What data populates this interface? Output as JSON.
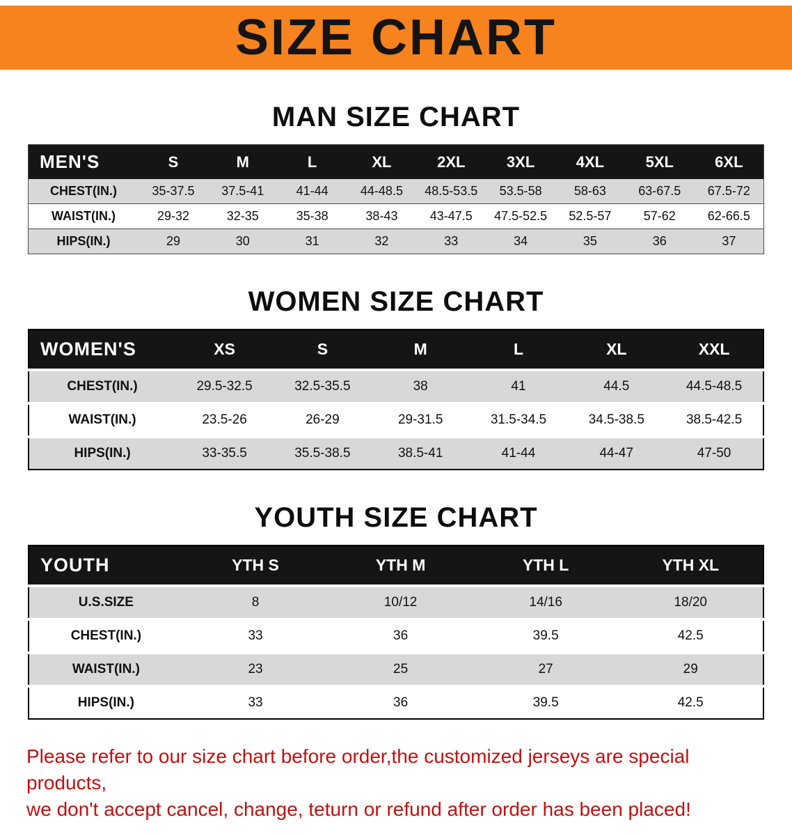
{
  "banner": {
    "title": "SIZE CHART"
  },
  "chart_data": [
    {
      "type": "table",
      "id": "mens",
      "heading": "MAN SIZE CHART",
      "header": [
        "MEN'S",
        "S",
        "M",
        "L",
        "XL",
        "2XL",
        "3XL",
        "4XL",
        "5XL",
        "6XL"
      ],
      "rows": [
        [
          "CHEST(IN.)",
          "35-37.5",
          "37.5-41",
          "41-44",
          "44-48.5",
          "48.5-53.5",
          "53.5-58",
          "58-63",
          "63-67.5",
          "67.5-72"
        ],
        [
          "WAIST(IN.)",
          "29-32",
          "32-35",
          "35-38",
          "38-43",
          "43-47.5",
          "47.5-52.5",
          "52.5-57",
          "57-62",
          "62-66.5"
        ],
        [
          "HIPS(IN.)",
          "29",
          "30",
          "31",
          "32",
          "33",
          "34",
          "35",
          "36",
          "37"
        ]
      ]
    },
    {
      "type": "table",
      "id": "womens",
      "heading": "WOMEN SIZE CHART",
      "header": [
        "WOMEN'S",
        "XS",
        "S",
        "M",
        "L",
        "XL",
        "XXL"
      ],
      "rows": [
        [
          "CHEST(IN.)",
          "29.5-32.5",
          "32.5-35.5",
          "38",
          "41",
          "44.5",
          "44.5-48.5"
        ],
        [
          "WAIST(IN.)",
          "23.5-26",
          "26-29",
          "29-31.5",
          "31.5-34.5",
          "34.5-38.5",
          "38.5-42.5"
        ],
        [
          "HIPS(IN.)",
          "33-35.5",
          "35.5-38.5",
          "38.5-41",
          "41-44",
          "44-47",
          "47-50"
        ]
      ]
    },
    {
      "type": "table",
      "id": "youth",
      "heading": "YOUTH SIZE CHART",
      "header": [
        "YOUTH",
        "YTH S",
        "YTH M",
        "YTH L",
        "YTH XL"
      ],
      "rows": [
        [
          "U.S.SIZE",
          "8",
          "10/12",
          "14/16",
          "18/20"
        ],
        [
          "CHEST(IN.)",
          "33",
          "36",
          "39.5",
          "42.5"
        ],
        [
          "WAIST(IN.)",
          "23",
          "25",
          "27",
          "29"
        ],
        [
          "HIPS(IN.)",
          "33",
          "36",
          "39.5",
          "42.5"
        ]
      ]
    }
  ],
  "disclaimer": {
    "lines": [
      "Please refer to our size chart before order,the customized jerseys are special products,",
      "we don't accept cancel, change, teturn or refund after order has been placed!"
    ]
  },
  "colors": {
    "banner_bg": "#F6831D",
    "table_header_bg": "#151515",
    "row_alt_bg": "#D8D8D8",
    "disclaimer_text": "#C21010"
  }
}
